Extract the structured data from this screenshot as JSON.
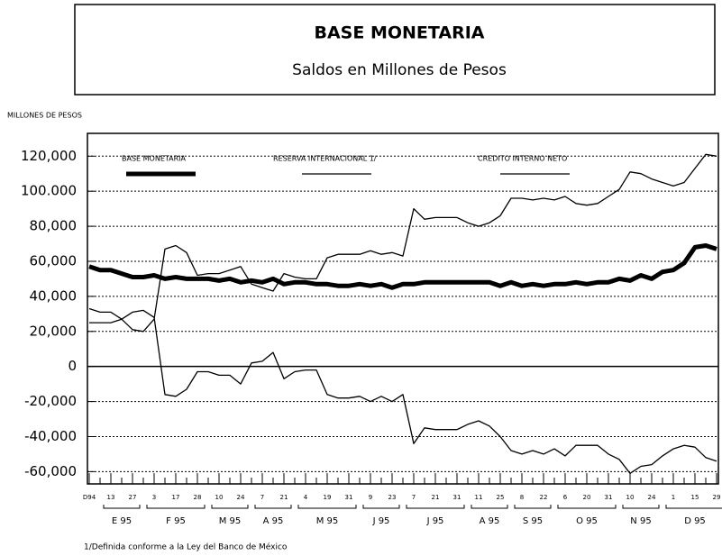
{
  "chart_data": {
    "type": "line",
    "title": "BASE MONETARIA",
    "subtitle": "Saldos en Millones de Pesos",
    "y_axis_label": "MILLONES  DE PESOS",
    "footnote": "1/Definida conforme a la Ley del Banco de México",
    "categories": [
      "D94",
      null,
      "13",
      null,
      "27",
      null,
      "3",
      null,
      "17",
      null,
      "28",
      null,
      "10",
      null,
      "24",
      null,
      "7",
      null,
      "21",
      null,
      "4",
      null,
      "19",
      null,
      "31",
      null,
      "9",
      null,
      "23",
      null,
      "7",
      null,
      "21",
      null,
      "31",
      null,
      "11",
      null,
      "25",
      null,
      "8",
      null,
      "22",
      null,
      "6",
      null,
      "20",
      null,
      "31",
      null,
      "10",
      null,
      "24",
      null,
      "1",
      null,
      "15",
      null,
      "29"
    ],
    "month_groups": [
      {
        "label": "E 95",
        "span": [
          2,
          4
        ]
      },
      {
        "label": "F 95",
        "span": [
          6,
          10
        ]
      },
      {
        "label": "M 95",
        "span": [
          12,
          14
        ]
      },
      {
        "label": "A 95",
        "span": [
          16,
          18
        ]
      },
      {
        "label": "M 95",
        "span": [
          20,
          24
        ]
      },
      {
        "label": "J 95",
        "span": [
          26,
          28
        ]
      },
      {
        "label": "J 95",
        "span": [
          30,
          34
        ]
      },
      {
        "label": "A 95",
        "span": [
          36,
          38
        ]
      },
      {
        "label": "S 95",
        "span": [
          40,
          42
        ]
      },
      {
        "label": "O 95",
        "span": [
          44,
          48
        ]
      },
      {
        "label": "N 95",
        "span": [
          50,
          52
        ]
      },
      {
        "label": "D 95",
        "span": [
          54,
          58
        ]
      }
    ],
    "series": [
      {
        "name": "BASE MONETARIA",
        "color": "#000000",
        "line_width": 5,
        "values": [
          57000,
          55000,
          55000,
          53000,
          51000,
          51000,
          52000,
          50000,
          51000,
          50000,
          50000,
          50000,
          49000,
          50000,
          48000,
          49000,
          48000,
          50000,
          47000,
          48000,
          48000,
          47000,
          47000,
          46000,
          46000,
          47000,
          46000,
          47000,
          45000,
          47000,
          47000,
          48000,
          48000,
          48000,
          48000,
          48000,
          48000,
          48000,
          46000,
          48000,
          46000,
          47000,
          46000,
          47000,
          47000,
          48000,
          47000,
          48000,
          48000,
          50000,
          49000,
          52000,
          50000,
          54000,
          55000,
          59000,
          68000,
          69000,
          67000
        ]
      },
      {
        "name": "RESERVA INTERNACIONAL 1/",
        "color": "#000000",
        "line_width": 1.3,
        "values": [
          33000,
          31000,
          31000,
          27000,
          21000,
          20000,
          27000,
          67000,
          69000,
          65000,
          52000,
          53000,
          53000,
          55000,
          57000,
          47000,
          45000,
          43000,
          53000,
          51000,
          50000,
          50000,
          62000,
          64000,
          64000,
          64000,
          66000,
          64000,
          65000,
          63000,
          90000,
          84000,
          85000,
          85000,
          85000,
          82000,
          80000,
          82000,
          86000,
          96000,
          96000,
          95000,
          96000,
          95000,
          97000,
          93000,
          92000,
          93000,
          97000,
          101000,
          111000,
          110000,
          107000,
          105000,
          103000,
          105000,
          113000,
          121000,
          120000
        ]
      },
      {
        "name": "CREDITO INTERNO NETO",
        "color": "#000000",
        "line_width": 1.3,
        "values": [
          25000,
          25000,
          25000,
          27000,
          31000,
          32000,
          28000,
          -16000,
          -17000,
          -13000,
          -3000,
          -3000,
          -5000,
          -5000,
          -10000,
          2000,
          3000,
          8000,
          -7000,
          -3000,
          -2000,
          -2000,
          -16000,
          -18000,
          -18000,
          -17000,
          -20000,
          -17000,
          -20000,
          -16000,
          -44000,
          -35000,
          -36000,
          -36000,
          -36000,
          -33000,
          -31000,
          -34000,
          -40000,
          -48000,
          -50000,
          -48000,
          -50000,
          -47000,
          -51000,
          -45000,
          -45000,
          -45000,
          -50000,
          -53000,
          -61000,
          -57000,
          -56000,
          -51000,
          -47000,
          -45000,
          -46000,
          -52000,
          -54000
        ]
      }
    ],
    "ylim": [
      -67000,
      133000
    ],
    "yticks": [
      {
        "value": -60000,
        "label": "-60,000"
      },
      {
        "value": -40000,
        "label": "-40,000"
      },
      {
        "value": -20000,
        "label": "-20,000"
      },
      0,
      {
        "value": 20000,
        "label": "20,000"
      },
      {
        "value": 40000,
        "label": "40,000"
      },
      {
        "value": 60000,
        "label": "60,000"
      },
      {
        "value": 80000,
        "label": "80,000"
      },
      {
        "value": 100000,
        "label": "100.000"
      },
      {
        "value": 120000,
        "label": "120,000"
      }
    ],
    "grid": true,
    "legend": "top"
  }
}
